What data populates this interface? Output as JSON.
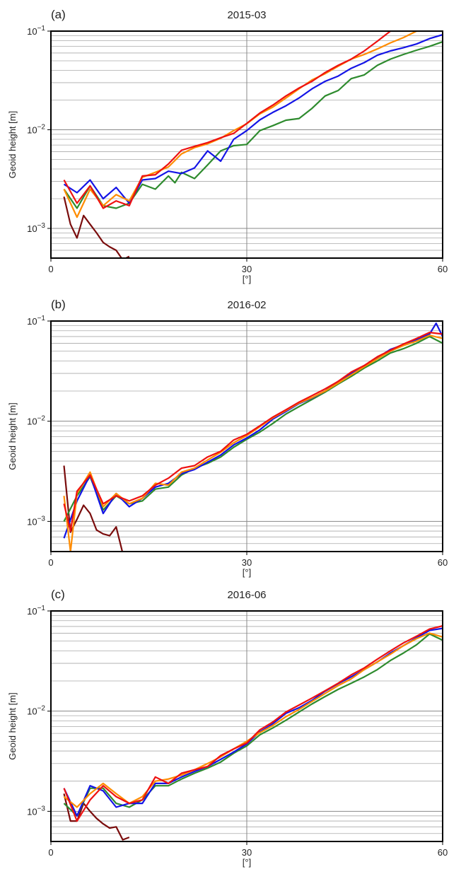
{
  "chart_data": [
    {
      "type": "line",
      "panel": "(a)",
      "title": "2015-03",
      "xlabel": "[°]",
      "ylabel": "Geoid height [m]",
      "xlim": [
        0,
        60
      ],
      "ylim": [
        0.0005,
        0.1
      ],
      "yscale": "log",
      "x_ticks": [
        0,
        30,
        60
      ],
      "y_ticks": [
        {
          "value": 0.001,
          "base": "10",
          "exp": "−3"
        },
        {
          "value": 0.01,
          "base": "10",
          "exp": "−2"
        },
        {
          "value": 0.1,
          "base": "10",
          "exp": "−1"
        }
      ],
      "grid": "y minor log lines, x line at 30",
      "series": [
        {
          "color": "#7a0c0c",
          "x": [
            2,
            3,
            4,
            5,
            6,
            7,
            8,
            9,
            10,
            11,
            12
          ],
          "values": [
            0.0021,
            0.0011,
            0.0008,
            0.00135,
            0.0011,
            0.0009,
            0.00072,
            0.00065,
            0.0006,
            0.00048,
            0.00052
          ]
        },
        {
          "color": "#2e8b2e",
          "x": [
            2,
            4,
            6,
            8,
            10,
            12,
            14,
            16,
            18,
            19,
            20,
            22,
            24,
            26,
            28,
            30,
            32,
            34,
            36,
            38,
            40,
            42,
            44,
            46,
            48,
            50,
            52,
            54,
            56,
            58,
            60
          ],
          "values": [
            0.0025,
            0.0016,
            0.0027,
            0.0017,
            0.0016,
            0.0018,
            0.0028,
            0.0025,
            0.0034,
            0.0029,
            0.0037,
            0.0032,
            0.0044,
            0.0061,
            0.0069,
            0.0071,
            0.0098,
            0.011,
            0.0125,
            0.013,
            0.0165,
            0.022,
            0.025,
            0.033,
            0.036,
            0.045,
            0.052,
            0.058,
            0.064,
            0.07,
            0.078
          ]
        },
        {
          "color": "#1414e6",
          "x": [
            2,
            4,
            6,
            8,
            10,
            12,
            14,
            16,
            18,
            20,
            22,
            24,
            26,
            28,
            30,
            32,
            34,
            36,
            38,
            40,
            42,
            44,
            46,
            48,
            50,
            52,
            54,
            56,
            58,
            60
          ],
          "values": [
            0.0028,
            0.0023,
            0.0031,
            0.002,
            0.0026,
            0.0018,
            0.0031,
            0.0032,
            0.0038,
            0.0036,
            0.0041,
            0.0061,
            0.0048,
            0.008,
            0.0098,
            0.0126,
            0.015,
            0.0175,
            0.021,
            0.026,
            0.031,
            0.035,
            0.042,
            0.048,
            0.057,
            0.063,
            0.068,
            0.074,
            0.084,
            0.092
          ]
        },
        {
          "color": "#ff8c00",
          "x": [
            2,
            4,
            6,
            8,
            10,
            12,
            14,
            16,
            18,
            20,
            22,
            24,
            26,
            28,
            30,
            32,
            34,
            36,
            38,
            40,
            42,
            44,
            46,
            48,
            50,
            52,
            54,
            56
          ],
          "values": [
            0.0025,
            0.0013,
            0.0025,
            0.0017,
            0.0022,
            0.0019,
            0.0033,
            0.0037,
            0.0042,
            0.0057,
            0.0066,
            0.0072,
            0.0082,
            0.0098,
            0.0115,
            0.0145,
            0.017,
            0.021,
            0.026,
            0.032,
            0.037,
            0.044,
            0.052,
            0.058,
            0.066,
            0.076,
            0.086,
            0.1
          ]
        },
        {
          "color": "#ee1111",
          "x": [
            2,
            4,
            6,
            8,
            10,
            12,
            14,
            16,
            18,
            20,
            22,
            24,
            26,
            28,
            30,
            32,
            34,
            36,
            38,
            40,
            42,
            44,
            46,
            48,
            50,
            52
          ],
          "values": [
            0.0031,
            0.0018,
            0.0027,
            0.0016,
            0.0019,
            0.0017,
            0.0034,
            0.0035,
            0.0045,
            0.0062,
            0.0068,
            0.0074,
            0.0083,
            0.0092,
            0.0116,
            0.0148,
            0.0178,
            0.022,
            0.0265,
            0.031,
            0.038,
            0.045,
            0.052,
            0.063,
            0.079,
            0.1
          ]
        }
      ]
    },
    {
      "type": "line",
      "panel": "(b)",
      "title": "2016-02",
      "xlabel": "[°]",
      "ylabel": "Geoid height [m]",
      "xlim": [
        0,
        60
      ],
      "ylim": [
        0.0005,
        0.1
      ],
      "yscale": "log",
      "x_ticks": [
        0,
        30,
        60
      ],
      "y_ticks": [
        {
          "value": 0.001,
          "base": "10",
          "exp": "−3"
        },
        {
          "value": 0.01,
          "base": "10",
          "exp": "−2"
        },
        {
          "value": 0.1,
          "base": "10",
          "exp": "−1"
        }
      ],
      "grid": "y minor log lines, x line at 30",
      "series": [
        {
          "color": "#7a0c0c",
          "x": [
            2,
            3,
            4,
            5,
            6,
            7,
            8,
            9,
            10,
            11,
            12
          ],
          "values": [
            0.0036,
            0.00078,
            0.00105,
            0.00145,
            0.0012,
            0.00082,
            0.00075,
            0.00072,
            0.00088,
            0.00048,
            0.00049
          ]
        },
        {
          "color": "#2e8b2e",
          "x": [
            2,
            4,
            6,
            8,
            10,
            12,
            14,
            16,
            18,
            20,
            22,
            24,
            26,
            28,
            30,
            32,
            34,
            36,
            38,
            40,
            42,
            44,
            46,
            48,
            50,
            52,
            54,
            56,
            58,
            60
          ],
          "values": [
            0.001,
            0.0018,
            0.0028,
            0.0013,
            0.0018,
            0.0015,
            0.0016,
            0.0021,
            0.0022,
            0.0029,
            0.0034,
            0.0038,
            0.0044,
            0.0055,
            0.0066,
            0.0078,
            0.0095,
            0.0118,
            0.014,
            0.0165,
            0.0195,
            0.0235,
            0.028,
            0.034,
            0.04,
            0.048,
            0.053,
            0.06,
            0.07,
            0.06
          ]
        },
        {
          "color": "#1414e6",
          "x": [
            2,
            4,
            6,
            8,
            10,
            12,
            14,
            16,
            18,
            20,
            22,
            24,
            26,
            28,
            30,
            32,
            34,
            36,
            38,
            40,
            42,
            44,
            46,
            48,
            50,
            52,
            54,
            56,
            58,
            59,
            60
          ],
          "values": [
            0.00068,
            0.0016,
            0.0029,
            0.0012,
            0.0019,
            0.0014,
            0.0017,
            0.0022,
            0.0024,
            0.003,
            0.0033,
            0.0039,
            0.0046,
            0.0058,
            0.0068,
            0.0082,
            0.0105,
            0.0125,
            0.015,
            0.017,
            0.02,
            0.025,
            0.03,
            0.036,
            0.043,
            0.052,
            0.058,
            0.065,
            0.074,
            0.095,
            0.07
          ]
        },
        {
          "color": "#ff8c00",
          "x": [
            2,
            3,
            4,
            6,
            8,
            10,
            12,
            14,
            16,
            18,
            20,
            22,
            24,
            26,
            28,
            30,
            32,
            34,
            36,
            38,
            40,
            42,
            44,
            46,
            48,
            50,
            52,
            54,
            56,
            58,
            60
          ],
          "values": [
            0.0018,
            0.0005,
            0.0019,
            0.0031,
            0.0014,
            0.0019,
            0.0015,
            0.0017,
            0.0024,
            0.0023,
            0.0031,
            0.0034,
            0.0041,
            0.0049,
            0.0061,
            0.0072,
            0.0088,
            0.0108,
            0.0128,
            0.0152,
            0.0172,
            0.02,
            0.024,
            0.029,
            0.035,
            0.042,
            0.05,
            0.057,
            0.063,
            0.072,
            0.067
          ]
        },
        {
          "color": "#ee1111",
          "x": [
            2,
            3,
            4,
            6,
            8,
            10,
            12,
            14,
            16,
            18,
            20,
            22,
            24,
            26,
            28,
            30,
            32,
            34,
            36,
            38,
            40,
            42,
            44,
            46,
            48,
            50,
            52,
            54,
            56,
            58,
            60
          ],
          "values": [
            0.0015,
            0.0008,
            0.002,
            0.0029,
            0.0015,
            0.0018,
            0.0016,
            0.0018,
            0.0023,
            0.0027,
            0.0034,
            0.0036,
            0.0044,
            0.005,
            0.0065,
            0.0074,
            0.009,
            0.011,
            0.013,
            0.0155,
            0.018,
            0.021,
            0.025,
            0.031,
            0.036,
            0.044,
            0.051,
            0.059,
            0.067,
            0.077,
            0.074
          ]
        }
      ]
    },
    {
      "type": "line",
      "panel": "(c)",
      "title": "2016-06",
      "xlabel": "[°]",
      "ylabel": "Geoid height [m]",
      "xlim": [
        0,
        60
      ],
      "ylim": [
        0.0005,
        0.1
      ],
      "yscale": "log",
      "x_ticks": [
        0,
        30,
        60
      ],
      "y_ticks": [
        {
          "value": 0.001,
          "base": "10",
          "exp": "−3"
        },
        {
          "value": 0.01,
          "base": "10",
          "exp": "−2"
        },
        {
          "value": 0.1,
          "base": "10",
          "exp": "−1"
        }
      ],
      "grid": "y minor log lines, x line at 30",
      "series": [
        {
          "color": "#7a0c0c",
          "x": [
            2,
            3,
            4,
            5,
            6,
            7,
            8,
            9,
            10,
            11,
            12
          ],
          "values": [
            0.0015,
            0.0008,
            0.0008,
            0.0012,
            0.001,
            0.00085,
            0.00075,
            0.00068,
            0.0007,
            0.00052,
            0.00055
          ]
        },
        {
          "color": "#2e8b2e",
          "x": [
            2,
            4,
            6,
            8,
            10,
            12,
            14,
            16,
            18,
            20,
            22,
            24,
            26,
            28,
            30,
            32,
            34,
            36,
            38,
            40,
            42,
            44,
            46,
            48,
            50,
            52,
            54,
            56,
            58,
            60
          ],
          "values": [
            0.0012,
            0.0009,
            0.0017,
            0.0017,
            0.0012,
            0.0011,
            0.0013,
            0.0018,
            0.0018,
            0.0021,
            0.0024,
            0.0027,
            0.0031,
            0.0038,
            0.0045,
            0.0058,
            0.0068,
            0.0081,
            0.0098,
            0.0118,
            0.014,
            0.0165,
            0.019,
            0.022,
            0.026,
            0.032,
            0.038,
            0.046,
            0.059,
            0.051
          ]
        },
        {
          "color": "#1414e6",
          "x": [
            2,
            4,
            6,
            8,
            10,
            12,
            14,
            16,
            18,
            20,
            22,
            24,
            26,
            28,
            30,
            32,
            34,
            36,
            38,
            40,
            42,
            44,
            46,
            48,
            50,
            52,
            54,
            56,
            58,
            60
          ],
          "values": [
            0.0017,
            0.0009,
            0.0018,
            0.0016,
            0.0011,
            0.0012,
            0.0012,
            0.0019,
            0.0019,
            0.0022,
            0.0025,
            0.0028,
            0.0033,
            0.0039,
            0.0047,
            0.0062,
            0.0075,
            0.0095,
            0.0108,
            0.0128,
            0.0158,
            0.0188,
            0.022,
            0.026,
            0.031,
            0.038,
            0.045,
            0.054,
            0.064,
            0.067
          ]
        },
        {
          "color": "#ff8c00",
          "x": [
            2,
            4,
            6,
            8,
            10,
            12,
            14,
            16,
            18,
            20,
            22,
            24,
            26,
            28,
            30,
            32,
            34,
            36,
            38,
            40,
            42,
            44,
            46,
            48,
            50,
            52,
            54,
            56,
            58,
            60
          ],
          "values": [
            0.0014,
            0.0011,
            0.0015,
            0.0019,
            0.0015,
            0.0012,
            0.0014,
            0.002,
            0.0021,
            0.0023,
            0.0026,
            0.003,
            0.0035,
            0.0042,
            0.005,
            0.0061,
            0.0072,
            0.0088,
            0.0104,
            0.0125,
            0.015,
            0.018,
            0.021,
            0.026,
            0.031,
            0.037,
            0.045,
            0.053,
            0.06,
            0.055
          ]
        },
        {
          "color": "#ee1111",
          "x": [
            2,
            4,
            6,
            8,
            10,
            12,
            14,
            16,
            18,
            20,
            22,
            24,
            26,
            28,
            30,
            32,
            34,
            36,
            38,
            40,
            42,
            44,
            46,
            48,
            50,
            52,
            54,
            56,
            58,
            60
          ],
          "values": [
            0.0017,
            0.0008,
            0.0013,
            0.0018,
            0.0014,
            0.0012,
            0.0013,
            0.0022,
            0.0019,
            0.0024,
            0.0026,
            0.0028,
            0.0036,
            0.0042,
            0.0048,
            0.0065,
            0.0078,
            0.0098,
            0.0115,
            0.0135,
            0.016,
            0.019,
            0.023,
            0.027,
            0.033,
            0.04,
            0.048,
            0.056,
            0.066,
            0.071
          ]
        }
      ]
    }
  ]
}
